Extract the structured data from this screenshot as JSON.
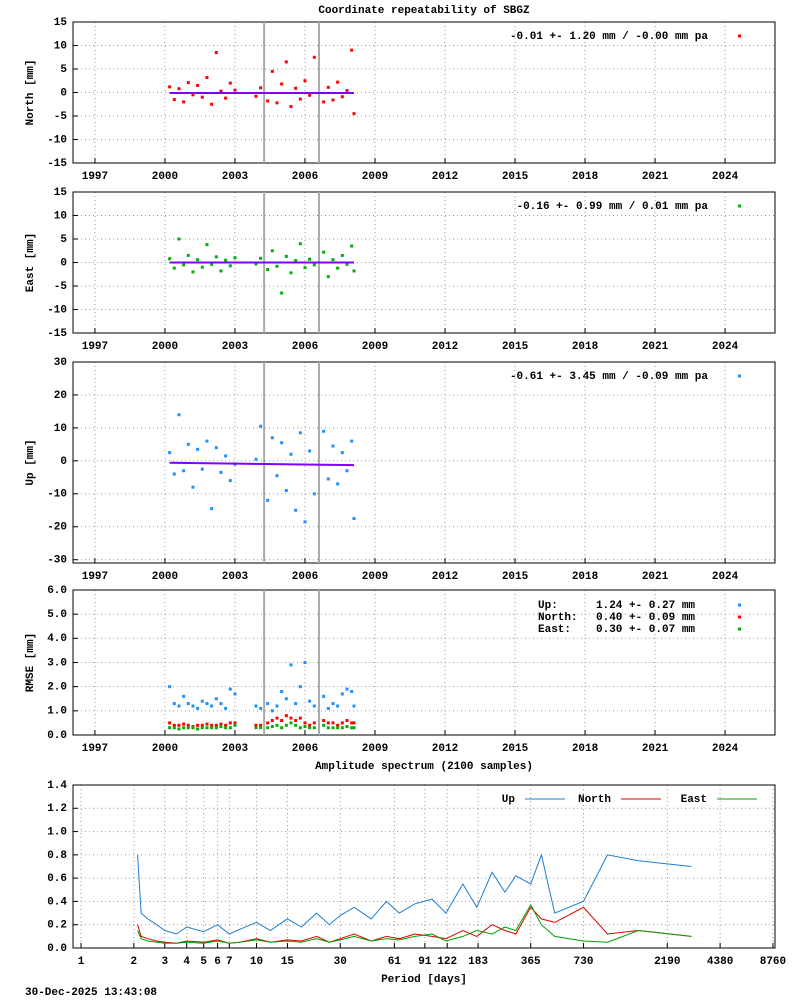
{
  "chart_data": [
    {
      "type": "scatter",
      "title": "Coordinate repeatability of SBGZ",
      "ylabel": "North [mm]",
      "xlim": [
        1996.06,
        2026.14
      ],
      "xticks": [
        1997,
        2000,
        2003,
        2006,
        2009,
        2012,
        2015,
        2018,
        2021,
        2024
      ],
      "ylim": [
        -15,
        15
      ],
      "yticks": [
        -15,
        -10,
        -5,
        0,
        5,
        10,
        15
      ],
      "grid": true,
      "event_lines": [
        2004.25,
        2006.6
      ],
      "x": [
        2000.2,
        2000.4,
        2000.6,
        2000.8,
        2001.0,
        2001.2,
        2001.4,
        2001.6,
        2001.8,
        2002.0,
        2002.2,
        2002.4,
        2002.6,
        2002.8,
        2003.0,
        2003.9,
        2004.1,
        2004.4,
        2004.6,
        2004.8,
        2005.0,
        2005.2,
        2005.4,
        2005.6,
        2005.8,
        2006.0,
        2006.2,
        2006.4,
        2006.8,
        2007.0,
        2007.2,
        2007.4,
        2007.6,
        2007.8,
        2008.0,
        2008.1
      ],
      "series": [
        {
          "name": "-0.01 +- 1.20 mm / -0.00 mm pa",
          "color": "#ff0000",
          "values": [
            1.2,
            -1.5,
            0.8,
            -2.0,
            2.1,
            -0.5,
            1.5,
            -1.0,
            3.2,
            -2.5,
            8.5,
            0.3,
            -1.2,
            2.0,
            0.5,
            -0.8,
            1.0,
            -1.8,
            4.5,
            -2.2,
            1.8,
            6.5,
            -3.0,
            0.9,
            -1.4,
            2.5,
            -0.6,
            7.5,
            -2.0,
            1.1,
            -1.6,
            2.2,
            -0.9,
            0.4,
            9.0,
            -4.5
          ]
        }
      ],
      "trend": {
        "color": "#8000ff",
        "x": [
          2000.2,
          2008.1
        ],
        "values": [
          -0.1,
          -0.1
        ]
      }
    },
    {
      "type": "scatter",
      "ylabel": "East [mm]",
      "xlim": [
        1996.06,
        2026.14
      ],
      "xticks": [
        1997,
        2000,
        2003,
        2006,
        2009,
        2012,
        2015,
        2018,
        2021,
        2024
      ],
      "ylim": [
        -15,
        15
      ],
      "yticks": [
        -15,
        -10,
        -5,
        0,
        5,
        10,
        15
      ],
      "grid": true,
      "event_lines": [
        2004.25,
        2006.6
      ],
      "x": [
        2000.2,
        2000.4,
        2000.6,
        2000.8,
        2001.0,
        2001.2,
        2001.4,
        2001.6,
        2001.8,
        2002.0,
        2002.2,
        2002.4,
        2002.6,
        2002.8,
        2003.0,
        2003.9,
        2004.1,
        2004.4,
        2004.6,
        2004.8,
        2005.0,
        2005.2,
        2005.4,
        2005.6,
        2005.8,
        2006.0,
        2006.2,
        2006.4,
        2006.8,
        2007.0,
        2007.2,
        2007.4,
        2007.6,
        2007.8,
        2008.0,
        2008.1
      ],
      "series": [
        {
          "name": "-0.16 +- 0.99 mm /  0.01 mm pa",
          "color": "#00b000",
          "values": [
            0.8,
            -1.2,
            5.0,
            -0.5,
            1.5,
            -2.0,
            0.6,
            -1.0,
            3.8,
            -0.4,
            1.2,
            -1.8,
            0.5,
            -0.7,
            1.0,
            -0.3,
            0.9,
            -1.5,
            2.5,
            -0.8,
            -6.5,
            1.3,
            -2.2,
            0.4,
            4.0,
            -1.1,
            0.7,
            -0.5,
            2.2,
            -3.0,
            0.6,
            -1.2,
            1.5,
            -0.4,
            3.5,
            -1.8
          ]
        }
      ],
      "trend": {
        "color": "#8000ff",
        "x": [
          2000.2,
          2008.1
        ],
        "values": [
          0,
          0
        ]
      }
    },
    {
      "type": "scatter",
      "ylabel": "Up [mm]",
      "xlim": [
        1996.06,
        2026.14
      ],
      "xticks": [
        1997,
        2000,
        2003,
        2006,
        2009,
        2012,
        2015,
        2018,
        2021,
        2024
      ],
      "ylim": [
        -31,
        30
      ],
      "yticks": [
        -30,
        -20,
        -10,
        0,
        10,
        20,
        30
      ],
      "grid": true,
      "event_lines": [
        2004.25,
        2006.6
      ],
      "x": [
        2000.2,
        2000.4,
        2000.6,
        2000.8,
        2001.0,
        2001.2,
        2001.4,
        2001.6,
        2001.8,
        2002.0,
        2002.2,
        2002.4,
        2002.6,
        2002.8,
        2003.0,
        2003.9,
        2004.1,
        2004.4,
        2004.6,
        2004.8,
        2005.0,
        2005.2,
        2005.4,
        2005.6,
        2005.8,
        2006.0,
        2006.2,
        2006.4,
        2006.8,
        2007.0,
        2007.2,
        2007.4,
        2007.6,
        2007.8,
        2008.0,
        2008.1
      ],
      "series": [
        {
          "name": "-0.61 +- 3.45 mm / -0.09 mm pa",
          "color": "#1e90ff",
          "values": [
            2.5,
            -4.0,
            14.0,
            -3.0,
            5.0,
            -8.0,
            3.5,
            -2.5,
            6.0,
            -14.5,
            4.0,
            -3.5,
            1.5,
            -6.0,
            -1.0,
            0.5,
            10.5,
            -12.0,
            7.0,
            -4.5,
            5.5,
            -9.0,
            2.0,
            -15.0,
            8.5,
            -18.5,
            3.0,
            -10.0,
            9.0,
            -5.5,
            4.5,
            -7.0,
            2.5,
            -3.0,
            6.0,
            -17.5
          ]
        }
      ],
      "trend": {
        "color": "#8000ff",
        "x": [
          2000.2,
          2008.1
        ],
        "values": [
          -0.6,
          -1.3
        ]
      }
    },
    {
      "type": "scatter",
      "ylabel": "RMSE [mm]",
      "xlim": [
        1996.06,
        2026.14
      ],
      "xticks": [
        1997,
        2000,
        2003,
        2006,
        2009,
        2012,
        2015,
        2018,
        2021,
        2024
      ],
      "ylim": [
        0,
        6
      ],
      "yticks": [
        {
          "value": 0,
          "label": "0.0"
        },
        {
          "value": 1,
          "label": "1.0"
        },
        {
          "value": 2,
          "label": "2.0"
        },
        {
          "value": 3,
          "label": "3.0"
        },
        {
          "value": 4,
          "label": "4.0"
        },
        {
          "value": 5,
          "label": "5.0"
        },
        {
          "value": 6,
          "label": "6.0"
        }
      ],
      "grid": true,
      "event_lines": [
        2004.25,
        2006.6
      ],
      "x": [
        2000.2,
        2000.4,
        2000.6,
        2000.8,
        2001.0,
        2001.2,
        2001.4,
        2001.6,
        2001.8,
        2002.0,
        2002.2,
        2002.4,
        2002.6,
        2002.8,
        2003.0,
        2003.9,
        2004.1,
        2004.4,
        2004.6,
        2004.8,
        2005.0,
        2005.2,
        2005.4,
        2005.6,
        2005.8,
        2006.0,
        2006.2,
        2006.4,
        2006.8,
        2007.0,
        2007.2,
        2007.4,
        2007.6,
        2007.8,
        2008.0,
        2008.1
      ],
      "series": [
        {
          "name": "Up:",
          "stat": "1.24 +- 0.27 mm",
          "color": "#1e90ff",
          "values": [
            2.0,
            1.3,
            1.2,
            1.6,
            1.3,
            1.2,
            1.1,
            1.4,
            1.3,
            1.2,
            1.5,
            1.3,
            1.1,
            1.9,
            1.7,
            1.2,
            1.1,
            1.3,
            1.0,
            1.2,
            1.8,
            1.5,
            2.9,
            1.3,
            2.0,
            3.0,
            1.4,
            1.2,
            1.6,
            1.1,
            1.3,
            1.2,
            1.7,
            1.9,
            1.8,
            1.2
          ]
        },
        {
          "name": "North:",
          "stat": "0.40 +- 0.09 mm",
          "color": "#ff0000",
          "values": [
            0.5,
            0.4,
            0.4,
            0.45,
            0.4,
            0.35,
            0.4,
            0.4,
            0.45,
            0.4,
            0.4,
            0.45,
            0.4,
            0.5,
            0.5,
            0.4,
            0.4,
            0.5,
            0.6,
            0.7,
            0.6,
            0.8,
            0.7,
            0.6,
            0.7,
            0.5,
            0.4,
            0.5,
            0.6,
            0.5,
            0.5,
            0.4,
            0.5,
            0.6,
            0.5,
            0.5
          ]
        },
        {
          "name": "East:",
          "stat": "0.30 +- 0.07 mm",
          "color": "#00b000",
          "values": [
            0.3,
            0.3,
            0.25,
            0.3,
            0.3,
            0.3,
            0.25,
            0.3,
            0.3,
            0.3,
            0.3,
            0.35,
            0.3,
            0.3,
            0.4,
            0.3,
            0.3,
            0.3,
            0.35,
            0.4,
            0.3,
            0.4,
            0.5,
            0.4,
            0.3,
            0.35,
            0.3,
            0.3,
            0.4,
            0.3,
            0.3,
            0.3,
            0.3,
            0.35,
            0.3,
            0.3
          ]
        }
      ]
    },
    {
      "type": "line",
      "title": "Amplitude spectrum (2100 samples)",
      "xlabel": "Period [days]",
      "xscale": "log",
      "xlim": [
        0.9,
        9000
      ],
      "xticks": [
        1,
        2,
        3,
        4,
        5,
        6,
        7,
        10,
        15,
        30,
        61,
        91,
        122,
        183,
        365,
        730,
        2190,
        4380,
        8760
      ],
      "ylim": [
        0,
        1.4
      ],
      "yticks": [
        {
          "value": 0,
          "label": "0.0"
        },
        {
          "value": 0.2,
          "label": "0.2"
        },
        {
          "value": 0.4,
          "label": "0.4"
        },
        {
          "value": 0.6,
          "label": "0.6"
        },
        {
          "value": 0.8,
          "label": "0.8"
        },
        {
          "value": 1.0,
          "label": "1.0"
        },
        {
          "value": 1.2,
          "label": "1.2"
        },
        {
          "value": 1.4,
          "label": "1.4"
        }
      ],
      "grid": true,
      "x": [
        2.1,
        2.2,
        2.4,
        2.7,
        3,
        3.5,
        4,
        5,
        6,
        7,
        8,
        10,
        12,
        15,
        18,
        22,
        26,
        30,
        36,
        45,
        55,
        65,
        80,
        100,
        120,
        150,
        180,
        220,
        260,
        300,
        365,
        420,
        500,
        730,
        1000,
        1500,
        3000
      ],
      "series": [
        {
          "name": "Up",
          "color": "#1e7fd0",
          "values": [
            0.8,
            0.3,
            0.25,
            0.2,
            0.15,
            0.12,
            0.18,
            0.14,
            0.2,
            0.12,
            0.16,
            0.22,
            0.15,
            0.25,
            0.18,
            0.3,
            0.2,
            0.28,
            0.35,
            0.25,
            0.4,
            0.3,
            0.38,
            0.42,
            0.3,
            0.55,
            0.35,
            0.65,
            0.48,
            0.62,
            0.55,
            0.8,
            0.3,
            0.4,
            0.8,
            0.75,
            0.7
          ]
        },
        {
          "name": "North",
          "color": "#e00000",
          "values": [
            0.2,
            0.1,
            0.08,
            0.06,
            0.05,
            0.04,
            0.06,
            0.05,
            0.07,
            0.04,
            0.05,
            0.08,
            0.05,
            0.07,
            0.06,
            0.1,
            0.05,
            0.08,
            0.12,
            0.06,
            0.1,
            0.08,
            0.12,
            0.1,
            0.08,
            0.15,
            0.1,
            0.2,
            0.15,
            0.12,
            0.35,
            0.25,
            0.22,
            0.35,
            0.12,
            0.15,
            0.1
          ]
        },
        {
          "name": "East",
          "color": "#00a000",
          "values": [
            0.15,
            0.08,
            0.06,
            0.05,
            0.04,
            0.04,
            0.05,
            0.04,
            0.06,
            0.04,
            0.05,
            0.07,
            0.05,
            0.06,
            0.05,
            0.08,
            0.05,
            0.07,
            0.1,
            0.06,
            0.08,
            0.07,
            0.1,
            0.12,
            0.06,
            0.1,
            0.15,
            0.12,
            0.18,
            0.15,
            0.37,
            0.2,
            0.1,
            0.06,
            0.05,
            0.15,
            0.1
          ]
        }
      ]
    }
  ],
  "footer": "30-Dec-2025 13:43:08"
}
